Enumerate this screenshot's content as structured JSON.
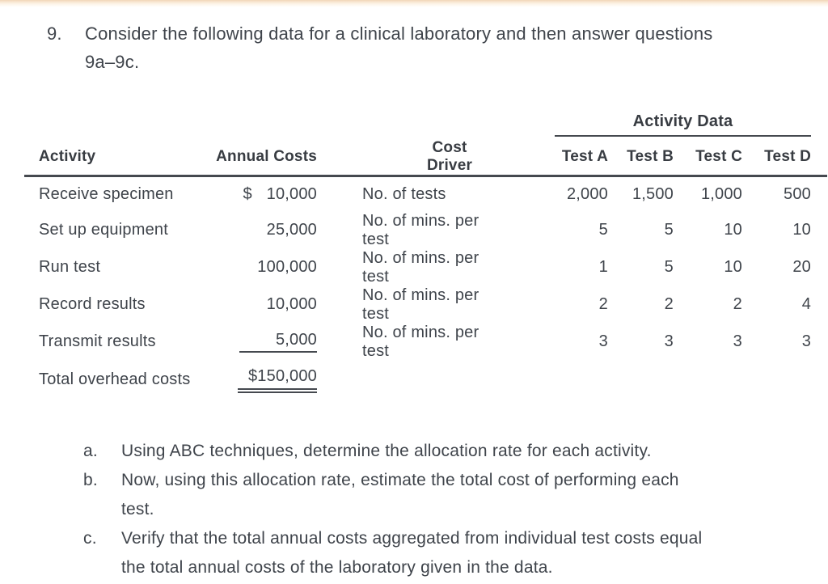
{
  "page": {
    "background": "#ffffff",
    "text_color": "#3f444b",
    "top_bar_color": "#f2d6b8"
  },
  "question": {
    "number": "9.",
    "lines": [
      "Consider the following data for a clinical laboratory and then answer questions",
      "9a–9c."
    ]
  },
  "table": {
    "group_header": "Activity Data",
    "columns": {
      "activity": "Activity",
      "annual_costs": "Annual Costs",
      "cost_driver": "Cost Driver",
      "test_a": "Test A",
      "test_b": "Test B",
      "test_c": "Test C",
      "test_d": "Test D"
    },
    "rows": [
      {
        "activity": "Receive specimen",
        "cost": "$ 10,000",
        "driver": "No. of tests",
        "a": "2,000",
        "b": "1,500",
        "c": "1,000",
        "d": "500"
      },
      {
        "activity": "Set up equipment",
        "cost": "25,000",
        "driver": "No. of mins. per test",
        "a": "5",
        "b": "5",
        "c": "10",
        "d": "10"
      },
      {
        "activity": "Run test",
        "cost": "100,000",
        "driver": "No. of mins. per test",
        "a": "1",
        "b": "5",
        "c": "10",
        "d": "20"
      },
      {
        "activity": "Record results",
        "cost": "10,000",
        "driver": "No. of mins. per test",
        "a": "2",
        "b": "2",
        "c": "2",
        "d": "4"
      },
      {
        "activity": "Transmit results",
        "cost": "5,000",
        "driver": "No. of mins. per test",
        "a": "3",
        "b": "3",
        "c": "3",
        "d": "3"
      }
    ],
    "total": {
      "label": "Total overhead costs",
      "value": "$150,000"
    }
  },
  "subquestions": [
    {
      "letter": "a.",
      "lines": [
        "Using ABC techniques, determine the allocation rate for each activity."
      ]
    },
    {
      "letter": "b.",
      "lines": [
        "Now, using this allocation rate, estimate the total cost of performing each",
        "test."
      ]
    },
    {
      "letter": "c.",
      "lines": [
        "Verify that the total annual costs aggregated from individual test costs equal",
        "the total annual costs of the laboratory given in the data."
      ]
    }
  ]
}
